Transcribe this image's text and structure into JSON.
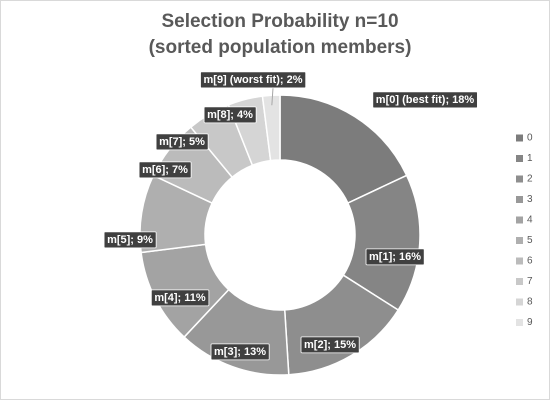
{
  "chart_data": {
    "type": "donut",
    "title": [
      "Selection Probability n=10",
      "(sorted population members)"
    ],
    "categories": [
      "0",
      "1",
      "2",
      "3",
      "4",
      "5",
      "6",
      "7",
      "8",
      "9"
    ],
    "values": [
      18,
      16,
      15,
      13,
      11,
      9,
      7,
      5,
      4,
      2
    ],
    "value_labels": [
      "m[0] (best fit); 18%",
      "m[1]; 16%",
      "m[2]; 15%",
      "m[3]; 13%",
      "m[4]; 11%",
      "m[5]; 9%",
      "m[6]; 7%",
      "m[7]; 5%",
      "m[8]; 4%",
      "m[9] (worst fit); 2%"
    ],
    "colors": [
      "#7c7c7c",
      "#858585",
      "#8e8e8e",
      "#989898",
      "#a3a3a3",
      "#afafaf",
      "#bbbbbb",
      "#c8c8c8",
      "#d5d5d5",
      "#e3e3e3"
    ],
    "legend": "right"
  }
}
